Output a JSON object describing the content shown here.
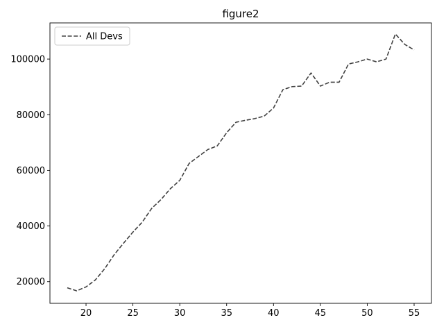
{
  "chart_data": {
    "type": "line",
    "title": "figure2",
    "xlabel": "",
    "ylabel": "",
    "xlim": [
      16.15,
      56.85
    ],
    "ylim": [
      12200,
      113000
    ],
    "xticks": [
      20,
      25,
      30,
      35,
      40,
      45,
      50,
      55
    ],
    "yticks": [
      20000,
      40000,
      60000,
      80000,
      100000
    ],
    "grid": false,
    "legend_placement": "upper-left",
    "series": [
      {
        "name": "All Devs",
        "color": "#404040",
        "linestyle": "dashed",
        "x": [
          18,
          19,
          20,
          21,
          22,
          23,
          24,
          25,
          26,
          27,
          28,
          29,
          30,
          31,
          32,
          33,
          34,
          35,
          36,
          37,
          38,
          39,
          40,
          41,
          42,
          43,
          44,
          45,
          46,
          47,
          48,
          49,
          50,
          51,
          52,
          53,
          54,
          55
        ],
        "y": [
          17800,
          16700,
          18100,
          20600,
          24700,
          29700,
          33800,
          37800,
          41400,
          46300,
          49500,
          53400,
          56400,
          62500,
          65000,
          67500,
          68800,
          73500,
          77300,
          78000,
          78600,
          79500,
          82400,
          89000,
          90100,
          90300,
          95000,
          90300,
          91700,
          91700,
          98200,
          99000,
          100000,
          99000,
          100000,
          109000,
          105300,
          103300
        ]
      }
    ]
  }
}
